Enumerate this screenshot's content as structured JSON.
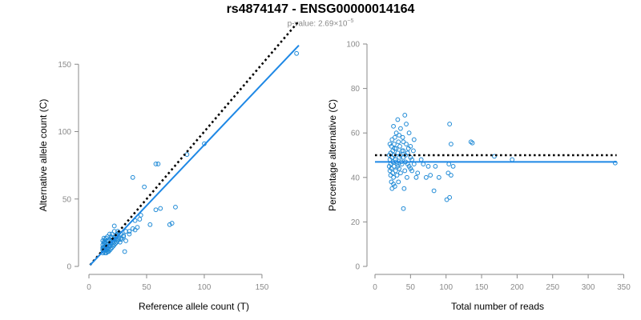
{
  "title": "rs4874147 - ENSG00000014164",
  "subtitle": {
    "prefix": "p-value: ",
    "mantissa": "2.69",
    "times": "×",
    "base": "10",
    "exponent": "−5"
  },
  "colors": {
    "points": "#1f8ad6",
    "fit": "#1e88e5",
    "reference": "#000000",
    "axis": "#8a8a8a"
  },
  "chart_data": [
    {
      "type": "scatter",
      "xlabel": "Reference allele count (T)",
      "ylabel": "Alternative allele count (C)",
      "xlim": [
        0,
        182
      ],
      "ylim": [
        0,
        165
      ],
      "xticks": [
        0,
        50,
        100,
        150
      ],
      "yticks": [
        0,
        50,
        100,
        150
      ],
      "reference_line": {
        "style": "dotted",
        "slope": 1,
        "intercept": 0,
        "x": [
          1,
          182
        ]
      },
      "fit_line": {
        "style": "solid",
        "x": [
          1,
          182
        ],
        "y": [
          1,
          164
        ]
      },
      "points": [
        [
          180,
          158
        ],
        [
          100,
          91
        ],
        [
          85,
          83
        ],
        [
          60,
          76
        ],
        [
          58,
          76
        ],
        [
          38,
          66
        ],
        [
          48,
          59
        ],
        [
          75,
          44
        ],
        [
          62,
          43
        ],
        [
          58,
          42
        ],
        [
          70,
          31
        ],
        [
          72,
          32
        ],
        [
          45,
          38
        ],
        [
          53,
          31
        ],
        [
          42,
          29
        ],
        [
          35,
          26
        ],
        [
          40,
          34
        ],
        [
          44,
          35
        ],
        [
          30,
          22
        ],
        [
          28,
          21
        ],
        [
          25,
          20
        ],
        [
          32,
          19
        ],
        [
          31,
          11
        ],
        [
          22,
          30
        ],
        [
          25,
          26
        ],
        [
          20,
          18
        ],
        [
          18,
          20
        ],
        [
          15,
          21
        ],
        [
          16,
          19
        ],
        [
          13,
          17
        ],
        [
          14,
          15
        ],
        [
          12,
          13
        ],
        [
          13,
          11
        ],
        [
          14,
          10
        ],
        [
          15,
          12
        ],
        [
          17,
          13
        ],
        [
          18,
          15
        ],
        [
          20,
          14
        ],
        [
          22,
          16
        ],
        [
          24,
          18
        ],
        [
          26,
          21
        ],
        [
          28,
          24
        ],
        [
          27,
          18
        ],
        [
          23,
          22
        ],
        [
          19,
          17
        ],
        [
          21,
          20
        ],
        [
          16,
          16
        ],
        [
          13,
          21
        ],
        [
          12,
          19
        ],
        [
          14,
          18
        ],
        [
          15,
          14
        ],
        [
          17,
          17
        ],
        [
          19,
          22
        ],
        [
          20,
          24
        ],
        [
          22,
          26
        ],
        [
          24,
          22
        ],
        [
          26,
          25
        ],
        [
          18,
          12
        ],
        [
          16,
          11
        ],
        [
          14,
          13
        ],
        [
          13,
          14
        ],
        [
          12,
          12
        ],
        [
          15,
          17
        ],
        [
          17,
          19
        ],
        [
          20,
          21
        ],
        [
          22,
          20
        ],
        [
          24,
          23
        ],
        [
          25,
          24
        ],
        [
          12,
          16
        ],
        [
          13,
          18
        ],
        [
          14,
          20
        ],
        [
          16,
          22
        ],
        [
          18,
          24
        ],
        [
          12,
          10
        ],
        [
          15,
          10
        ],
        [
          17,
          11
        ],
        [
          19,
          13
        ],
        [
          21,
          15
        ],
        [
          23,
          17
        ],
        [
          25,
          19
        ],
        [
          28,
          20
        ],
        [
          30,
          23
        ],
        [
          32,
          26
        ],
        [
          35,
          24
        ],
        [
          38,
          28
        ],
        [
          40,
          27
        ],
        [
          12,
          14
        ],
        [
          13,
          13
        ],
        [
          15,
          15
        ],
        [
          16,
          14
        ],
        [
          18,
          16
        ],
        [
          20,
          16
        ],
        [
          22,
          18
        ],
        [
          14,
          12
        ],
        [
          16,
          13
        ]
      ]
    },
    {
      "type": "scatter",
      "xlabel": "Total number of reads",
      "ylabel": "Percentage alternative (C)",
      "xlim": [
        0,
        345
      ],
      "ylim": [
        0,
        100
      ],
      "xticks": [
        0,
        50,
        100,
        150,
        200,
        250,
        300,
        350
      ],
      "yticks": [
        0,
        20,
        40,
        60,
        80,
        100
      ],
      "reference_line": {
        "style": "dotted",
        "y": 50,
        "x": [
          0,
          340
        ]
      },
      "fit_line": {
        "style": "solid",
        "y": 47,
        "x": [
          0,
          340
        ]
      },
      "points": [
        [
          338,
          46.5
        ],
        [
          193,
          48
        ],
        [
          168,
          49.5
        ],
        [
          137,
          55.5
        ],
        [
          135,
          56
        ],
        [
          105,
          64
        ],
        [
          107,
          55
        ],
        [
          104,
          46
        ],
        [
          110,
          45
        ],
        [
          103,
          42
        ],
        [
          107,
          41
        ],
        [
          105,
          31
        ],
        [
          101,
          30
        ],
        [
          90,
          40
        ],
        [
          83,
          34
        ],
        [
          78,
          41
        ],
        [
          85,
          45
        ],
        [
          75,
          45
        ],
        [
          72,
          40
        ],
        [
          68,
          46
        ],
        [
          65,
          48
        ],
        [
          60,
          42
        ],
        [
          58,
          40
        ],
        [
          55,
          57
        ],
        [
          54,
          52
        ],
        [
          52,
          48
        ],
        [
          50,
          54
        ],
        [
          50,
          44
        ],
        [
          48,
          60
        ],
        [
          47,
          53
        ],
        [
          46,
          46
        ],
        [
          45,
          40
        ],
        [
          44,
          64
        ],
        [
          44,
          55
        ],
        [
          43,
          50
        ],
        [
          42,
          43
        ],
        [
          42,
          68
        ],
        [
          41,
          35
        ],
        [
          40,
          56
        ],
        [
          40,
          49
        ],
        [
          40,
          26
        ],
        [
          39,
          58
        ],
        [
          38,
          52
        ],
        [
          37,
          47
        ],
        [
          36,
          42
        ],
        [
          36,
          62
        ],
        [
          35,
          54
        ],
        [
          34,
          49
        ],
        [
          34,
          44
        ],
        [
          33,
          38
        ],
        [
          33,
          56
        ],
        [
          32,
          66
        ],
        [
          32,
          51
        ],
        [
          31,
          46
        ],
        [
          31,
          41
        ],
        [
          30,
          60
        ],
        [
          30,
          53
        ],
        [
          29,
          48
        ],
        [
          29,
          43
        ],
        [
          28,
          36
        ],
        [
          28,
          58
        ],
        [
          27,
          55
        ],
        [
          27,
          50
        ],
        [
          27,
          45
        ],
        [
          26,
          40
        ],
        [
          26,
          63
        ],
        [
          25,
          52
        ],
        [
          25,
          47
        ],
        [
          25,
          42
        ],
        [
          24,
          57
        ],
        [
          24,
          49
        ],
        [
          23,
          54
        ],
        [
          23,
          44
        ],
        [
          23,
          38
        ],
        [
          22,
          51
        ],
        [
          22,
          46
        ],
        [
          22,
          41
        ],
        [
          21,
          55
        ],
        [
          21,
          48
        ],
        [
          20,
          50
        ],
        [
          20,
          45
        ],
        [
          21,
          43
        ],
        [
          24,
          35
        ],
        [
          26,
          37
        ],
        [
          28,
          53
        ],
        [
          30,
          47
        ],
        [
          32,
          45
        ],
        [
          34,
          59
        ],
        [
          36,
          50
        ],
        [
          38,
          46
        ],
        [
          40,
          52
        ],
        [
          43,
          47
        ],
        [
          46,
          51
        ],
        [
          48,
          45
        ],
        [
          50,
          49
        ],
        [
          52,
          43
        ],
        [
          55,
          46
        ]
      ]
    }
  ]
}
